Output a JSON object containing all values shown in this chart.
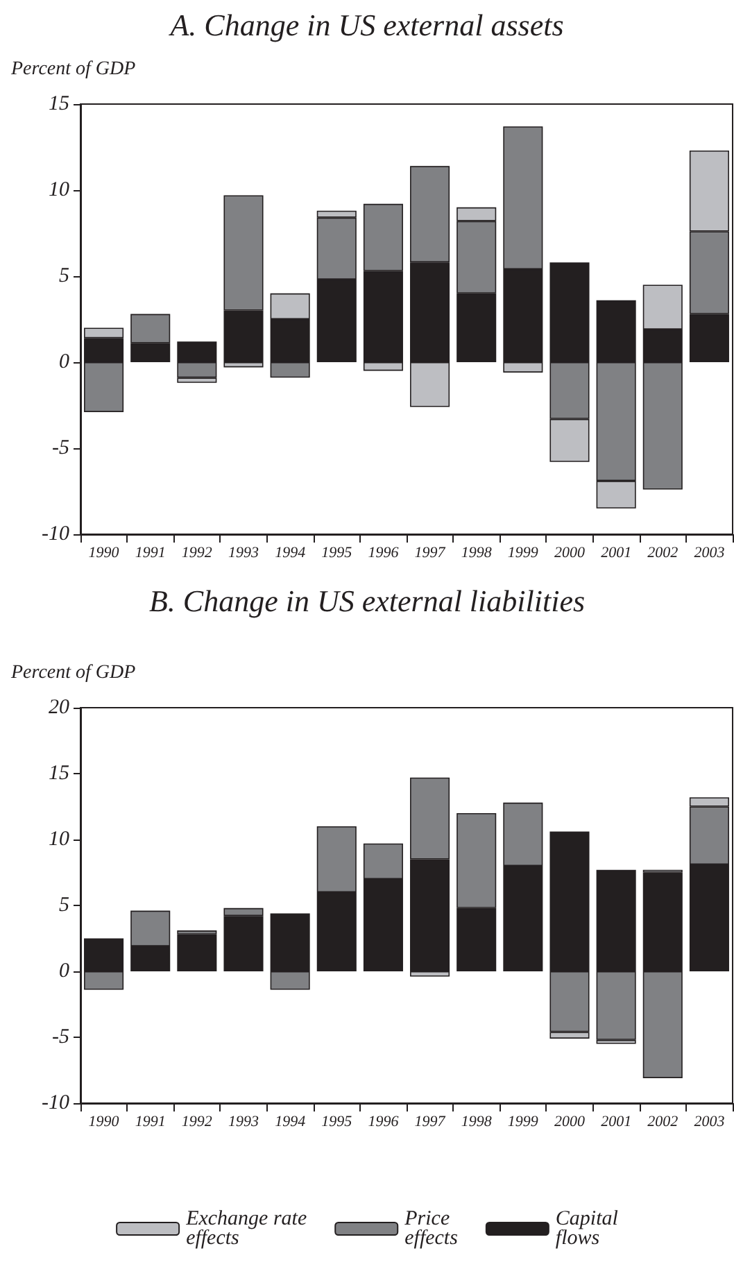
{
  "chart_data": [
    {
      "type": "bar",
      "title": "A. Change in US external assets",
      "ylabel": "Percent of GDP",
      "categories": [
        "1990",
        "1991",
        "1992",
        "1993",
        "1994",
        "1995",
        "1996",
        "1997",
        "1998",
        "1999",
        "2000",
        "2001",
        "2002",
        "2003"
      ],
      "stacked": true,
      "ylim": [
        -10,
        15
      ],
      "yticks": [
        -10,
        -5,
        0,
        5,
        10,
        15
      ],
      "grid": false,
      "legend": false,
      "series": [
        {
          "color": "#231f20",
          "values": [
            1.4,
            1.1,
            1.2,
            3.0,
            2.5,
            4.8,
            5.3,
            5.8,
            4.0,
            5.4,
            5.8,
            3.6,
            1.9,
            2.8
          ]
        },
        {
          "color": "#808184",
          "values": [
            -2.9,
            1.7,
            -0.9,
            6.7,
            -0.9,
            3.6,
            3.9,
            5.6,
            4.2,
            8.3,
            -3.3,
            -6.9,
            -7.4,
            4.8
          ]
        },
        {
          "color": "#bdbec2",
          "values": [
            0.6,
            null,
            -0.3,
            -0.3,
            1.5,
            0.4,
            -0.5,
            -2.6,
            0.8,
            -0.6,
            -2.5,
            -1.6,
            2.6,
            4.7
          ]
        }
      ]
    },
    {
      "type": "bar",
      "title": "B. Change in US external liabilities",
      "ylabel": "Percent of GDP",
      "categories": [
        "1990",
        "1991",
        "1992",
        "1993",
        "1994",
        "1995",
        "1996",
        "1997",
        "1998",
        "1999",
        "2000",
        "2001",
        "2002",
        "2003"
      ],
      "stacked": true,
      "ylim": [
        -10,
        20
      ],
      "yticks": [
        -10,
        -5,
        0,
        5,
        10,
        15,
        20
      ],
      "grid": false,
      "legend": "bottom",
      "series": [
        {
          "name": "Capital flows",
          "color": "#231f20",
          "values": [
            2.5,
            1.9,
            2.8,
            4.2,
            4.4,
            6.0,
            7.0,
            8.5,
            4.8,
            8.0,
            10.6,
            7.7,
            7.5,
            8.1
          ]
        },
        {
          "name": "Price effects",
          "color": "#808184",
          "values": [
            -1.4,
            2.7,
            0.3,
            0.6,
            -1.4,
            5.0,
            2.7,
            6.2,
            7.2,
            4.8,
            -4.6,
            -5.2,
            -8.1,
            4.4
          ]
        },
        {
          "name": "Exchange rate effects",
          "color": "#bdbec2",
          "values": [
            null,
            null,
            null,
            null,
            null,
            null,
            null,
            -0.4,
            null,
            null,
            -0.5,
            -0.3,
            0.2,
            0.7
          ]
        }
      ]
    }
  ]
}
